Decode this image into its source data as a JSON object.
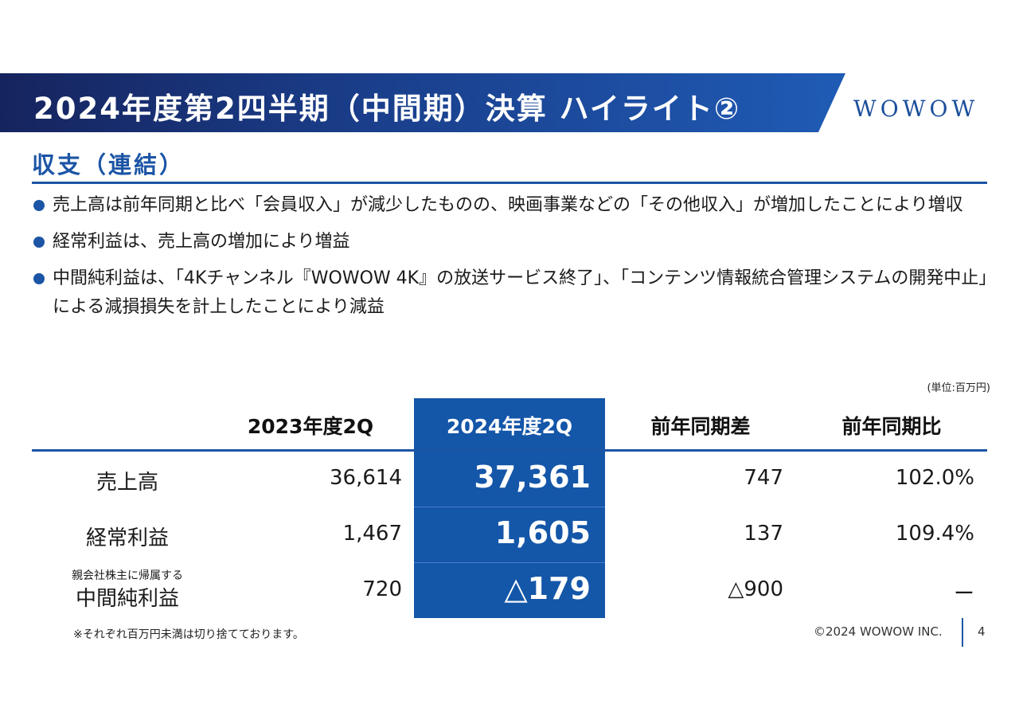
{
  "header": {
    "title": "2024年度第2四半期（中間期）決算 ハイライト②",
    "logo": "WOWOW"
  },
  "section": {
    "title": "収支（連結）"
  },
  "bullets": [
    "売上高は前年同期と比べ「会員収入」が減少したものの、映画事業などの「その他収入」が増加したことにより増収",
    "経常利益は、売上高の増加により増益",
    "中間純利益は、「4Kチャンネル『WOWOW 4K』の放送サービス終了」、「コンテンツ情報統合管理システムの開発中止」による減損損失を計上したことにより減益"
  ],
  "table": {
    "unit_note": "(単位:百万円)",
    "headers": [
      "2023年度2Q",
      "2024年度2Q",
      "前年同期差",
      "前年同期比"
    ],
    "rows": [
      {
        "label_small": "",
        "label": "売上高",
        "prev": "36,614",
        "curr": "37,361",
        "diff": "747",
        "ratio": "102.0%"
      },
      {
        "label_small": "",
        "label": "経常利益",
        "prev": "1,467",
        "curr": "1,605",
        "diff": "137",
        "ratio": "109.4%"
      },
      {
        "label_small": "親会社株主に帰属する",
        "label": "中間純利益",
        "prev": "720",
        "curr": "△179",
        "diff": "△900",
        "ratio": "ー"
      }
    ]
  },
  "footer": {
    "note": "※それぞれ百万円未満は切り捨てております。",
    "copyright": "©2024 WOWOW INC.",
    "page": "4"
  },
  "colors": {
    "brand_blue": "#1c55a5",
    "highlight_column": "#1456a8",
    "title_dark": "#16245e"
  }
}
